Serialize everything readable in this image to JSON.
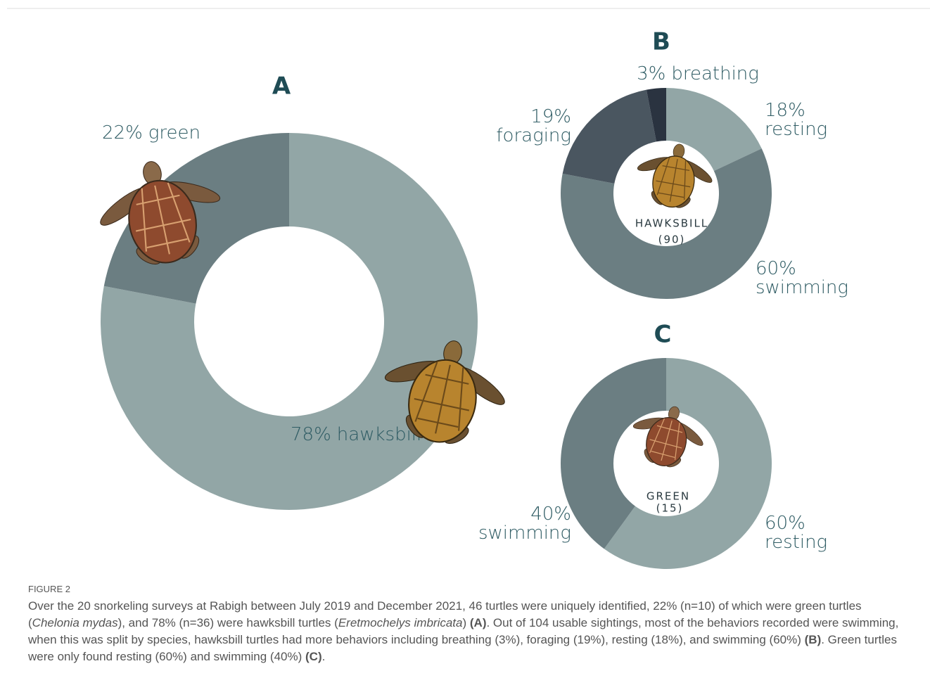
{
  "chart_data": [
    {
      "type": "donut",
      "title": "A",
      "categories": [
        "hawksbill",
        "green"
      ],
      "values": [
        78,
        22
      ],
      "value_labels": [
        "78%",
        "22%"
      ],
      "colors": [
        "#92a6a6",
        "#6b7e82"
      ]
    },
    {
      "type": "donut",
      "title": "B",
      "categories": [
        "resting",
        "swimming",
        "foraging",
        "breathing"
      ],
      "values": [
        18,
        60,
        19,
        3
      ],
      "value_labels": [
        "18%",
        "60%",
        "19%",
        "3%"
      ],
      "colors": [
        "#92a6a6",
        "#6b7e82",
        "#4a5660",
        "#2a3340"
      ],
      "center_text": [
        "HAWKSBILL",
        "(90)"
      ]
    },
    {
      "type": "donut",
      "title": "C",
      "categories": [
        "resting",
        "swimming"
      ],
      "values": [
        60,
        40
      ],
      "value_labels": [
        "60%",
        "40%"
      ],
      "colors": [
        "#92a6a6",
        "#6b7e82"
      ],
      "center_text": [
        "GREEN",
        "(15)"
      ]
    }
  ],
  "caption": {
    "label": "FIGURE 2",
    "parts": [
      "Over the 20 snorkeling surveys at Rabigh between July 2019 and December 2021, 46 turtles were uniquely identified, 22% (n=10) of which were green turtles (",
      "Chelonia mydas",
      "), and 78% (n=36) were hawksbill turtles (",
      "Eretmochelys imbricata",
      ") ",
      "(A)",
      ". Out of 104 usable sightings, most of the behaviors recorded were swimming, when this was split by species, hawksbill turtles had more behaviors including breathing (3%), foraging (19%), resting (18%), and swimming (60%) ",
      "(B)",
      ". Green turtles were only found resting (60%) and swimming (40%) ",
      "(C)",
      "."
    ]
  }
}
